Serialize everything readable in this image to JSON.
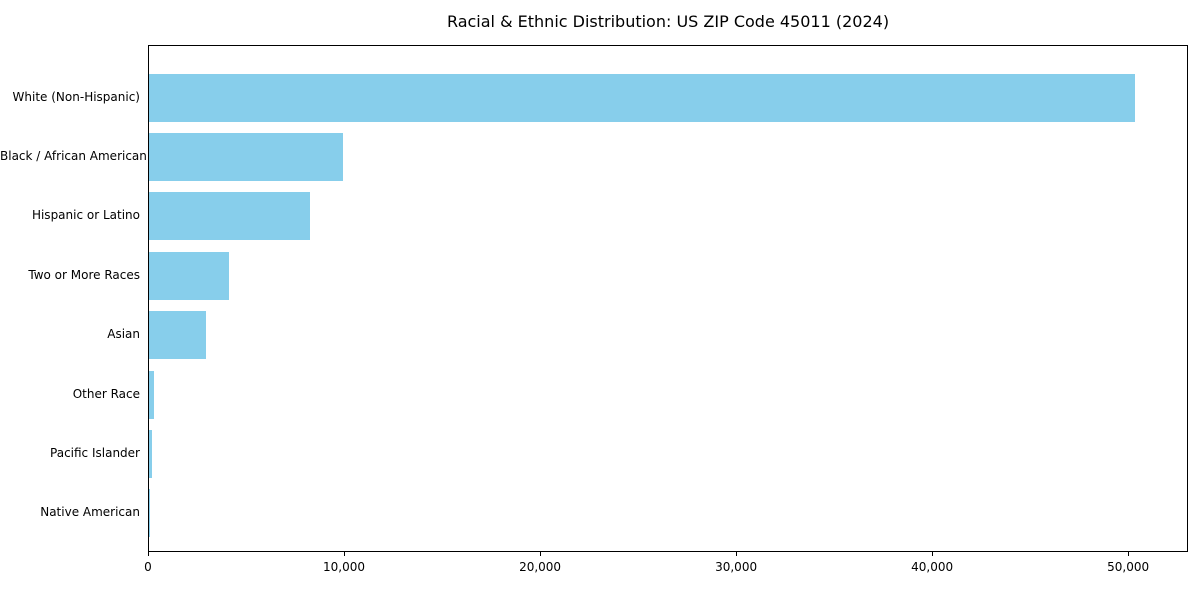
{
  "chart_data": {
    "type": "bar",
    "orientation": "horizontal",
    "title": "Racial & Ethnic Distribution: US ZIP Code 45011 (2024)",
    "categories": [
      "White (Non-Hispanic)",
      "Black / African American",
      "Hispanic or Latino",
      "Two or More Races",
      "Asian",
      "Other Race",
      "Pacific Islander",
      "Native American"
    ],
    "values": [
      50300,
      9900,
      8200,
      4100,
      2900,
      250,
      150,
      40
    ],
    "bar_color": "#87CEEB",
    "xlim": [
      0,
      52950
    ],
    "xticks": [
      0,
      10000,
      20000,
      30000,
      40000,
      50000
    ],
    "xtick_labels": [
      "0",
      "10,000",
      "20,000",
      "30,000",
      "40,000",
      "50,000"
    ],
    "grid": false,
    "legend": null,
    "xlabel": "",
    "ylabel": ""
  }
}
